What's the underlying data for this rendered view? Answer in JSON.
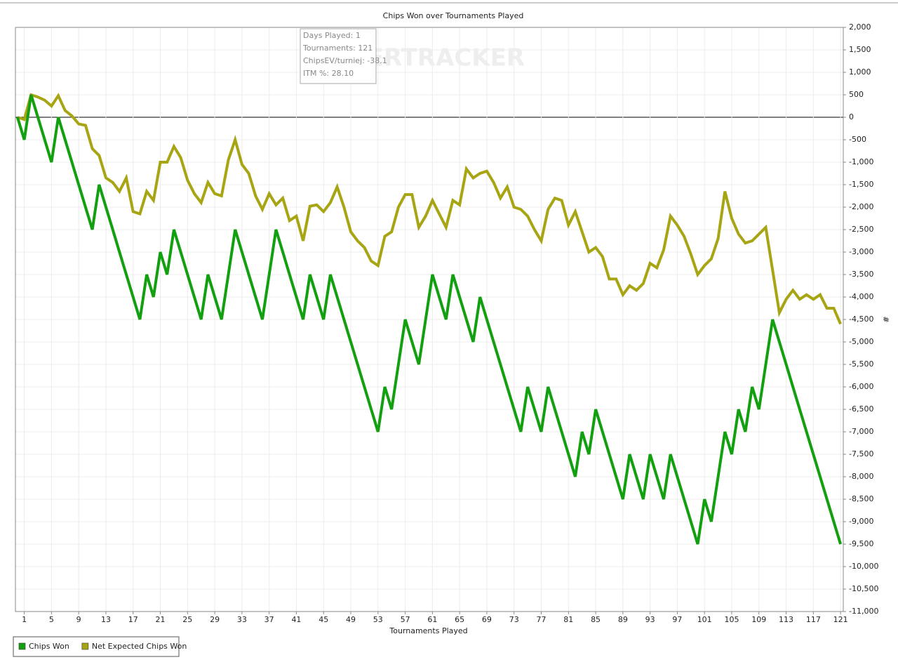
{
  "chart_data": {
    "type": "line",
    "title": "Chips Won over Tournaments Played",
    "x_label": "Tournaments Played",
    "y_label": "#",
    "tooltip": [
      "Days Played: 1",
      "Tournaments: 121",
      "ChipsEV/turniej: -38.1",
      "ITM %: 28.10"
    ],
    "watermark": "POKERTRACKER",
    "legend": "bottom-left",
    "grid": true,
    "xlim": [
      -0.3,
      121.4
    ],
    "ylim": [
      -11000,
      2000
    ],
    "xticks": [
      1,
      5,
      9,
      13,
      17,
      21,
      25,
      29,
      33,
      37,
      41,
      45,
      49,
      53,
      57,
      61,
      65,
      69,
      73,
      77,
      81,
      85,
      89,
      93,
      97,
      101,
      105,
      109,
      113,
      117,
      121
    ],
    "yticks": [
      {
        "value": 2000,
        "label": "2,000"
      },
      {
        "value": 1500,
        "label": "1,500"
      },
      {
        "value": 1000,
        "label": "1,000"
      },
      500,
      0,
      -500,
      {
        "value": -1000,
        "label": "-1,000"
      },
      {
        "value": -1500,
        "label": "-1,500"
      },
      {
        "value": -2000,
        "label": "-2,000"
      },
      {
        "value": -2500,
        "label": "-2,500"
      },
      {
        "value": -3000,
        "label": "-3,000"
      },
      {
        "value": -3500,
        "label": "-3,500"
      },
      {
        "value": -4000,
        "label": "-4,000"
      },
      {
        "value": -4500,
        "label": "-4,500"
      },
      {
        "value": -5000,
        "label": "-5,000"
      },
      {
        "value": -5500,
        "label": "-5,500"
      },
      {
        "value": -6000,
        "label": "-6,000"
      },
      {
        "value": -6500,
        "label": "-6,500"
      },
      {
        "value": -7000,
        "label": "-7,000"
      },
      {
        "value": -7500,
        "label": "-7,500"
      },
      {
        "value": -8000,
        "label": "-8,000"
      },
      {
        "value": -8500,
        "label": "-8,500"
      },
      {
        "value": -9000,
        "label": "-9,000"
      },
      {
        "value": -9500,
        "label": "-9,500"
      },
      {
        "value": -10000,
        "label": "-10,000"
      },
      {
        "value": -10500,
        "label": "-10,500"
      },
      {
        "value": -11000,
        "label": "-11,000"
      }
    ],
    "x": [
      0,
      1,
      2,
      3,
      4,
      5,
      6,
      7,
      8,
      9,
      10,
      11,
      12,
      13,
      14,
      15,
      16,
      17,
      18,
      19,
      20,
      21,
      22,
      23,
      24,
      25,
      26,
      27,
      28,
      29,
      30,
      31,
      32,
      33,
      34,
      35,
      36,
      37,
      38,
      39,
      40,
      41,
      42,
      43,
      44,
      45,
      46,
      47,
      48,
      49,
      50,
      51,
      52,
      53,
      54,
      55,
      56,
      57,
      58,
      59,
      60,
      61,
      62,
      63,
      64,
      65,
      66,
      67,
      68,
      69,
      70,
      71,
      72,
      73,
      74,
      75,
      76,
      77,
      78,
      79,
      80,
      81,
      82,
      83,
      84,
      85,
      86,
      87,
      88,
      89,
      90,
      91,
      92,
      93,
      94,
      95,
      96,
      97,
      98,
      99,
      100,
      101,
      102,
      103,
      104,
      105,
      106,
      107,
      108,
      109,
      110,
      111,
      112,
      113,
      114,
      115,
      116,
      117,
      118,
      119,
      120,
      121
    ],
    "series": [
      {
        "name": "Chips Won",
        "color": "#13a010",
        "values": [
          0,
          -500,
          500,
          0,
          -500,
          -1000,
          0,
          -500,
          -1000,
          -1500,
          -2000,
          -2500,
          -1500,
          -2000,
          -2500,
          -3000,
          -3500,
          -4000,
          -4500,
          -3500,
          -4000,
          -3000,
          -3500,
          -2500,
          -3000,
          -3500,
          -4000,
          -4500,
          -3500,
          -4000,
          -4500,
          -3500,
          -2500,
          -3000,
          -3500,
          -4000,
          -4500,
          -3500,
          -2500,
          -3000,
          -3500,
          -4000,
          -4500,
          -3500,
          -4000,
          -4500,
          -3500,
          -4000,
          -4500,
          -5000,
          -5500,
          -6000,
          -6500,
          -7000,
          -6000,
          -6500,
          -5500,
          -4500,
          -5000,
          -5500,
          -4500,
          -3500,
          -4000,
          -4500,
          -3500,
          -4000,
          -4500,
          -5000,
          -4000,
          -4500,
          -5000,
          -5500,
          -6000,
          -6500,
          -7000,
          -6000,
          -6500,
          -7000,
          -6000,
          -6500,
          -7000,
          -7500,
          -8000,
          -7000,
          -7500,
          -6500,
          -7000,
          -7500,
          -8000,
          -8500,
          -7500,
          -8000,
          -8500,
          -7500,
          -8000,
          -8500,
          -7500,
          -8000,
          -8500,
          -9000,
          -9500,
          -8500,
          -9000,
          -8000,
          -7000,
          -7500,
          -6500,
          -7000,
          -6000,
          -6500,
          -5500,
          -4500,
          -5000,
          -5500,
          -6000,
          -6500,
          -7000,
          -7500,
          -8000,
          -8500,
          -9000,
          -9500
        ]
      },
      {
        "name": "Net Expected Chips Won",
        "color": "#a8a514",
        "values": [
          0,
          -50,
          500,
          450,
          380,
          250,
          480,
          150,
          30,
          -150,
          -180,
          -700,
          -850,
          -1350,
          -1450,
          -1650,
          -1350,
          -2100,
          -2150,
          -1650,
          -1850,
          -1000,
          -1000,
          -650,
          -900,
          -1400,
          -1700,
          -1900,
          -1450,
          -1700,
          -1750,
          -950,
          -500,
          -1050,
          -1250,
          -1750,
          -2050,
          -1700,
          -1950,
          -1800,
          -2300,
          -2200,
          -2750,
          -1980,
          -1950,
          -2100,
          -1900,
          -1550,
          -2000,
          -2550,
          -2750,
          -2900,
          -3200,
          -3300,
          -2650,
          -2550,
          -2000,
          -1720,
          -1720,
          -2450,
          -2200,
          -1850,
          -2150,
          -2450,
          -1850,
          -1950,
          -1150,
          -1350,
          -1250,
          -1200,
          -1450,
          -1800,
          -1550,
          -2000,
          -2050,
          -2200,
          -2500,
          -2750,
          -2050,
          -1800,
          -1850,
          -2400,
          -2100,
          -2550,
          -3000,
          -2900,
          -3100,
          -3600,
          -3600,
          -3950,
          -3750,
          -3850,
          -3700,
          -3250,
          -3350,
          -2950,
          -2200,
          -2400,
          -2650,
          -3050,
          -3500,
          -3300,
          -3150,
          -2700,
          -1650,
          -2250,
          -2600,
          -2800,
          -2750,
          -2600,
          -2450,
          -3400,
          -4350,
          -4050,
          -3850,
          -4050,
          -3950,
          -4050,
          -3950,
          -4250,
          -4250,
          -4600
        ]
      }
    ]
  }
}
